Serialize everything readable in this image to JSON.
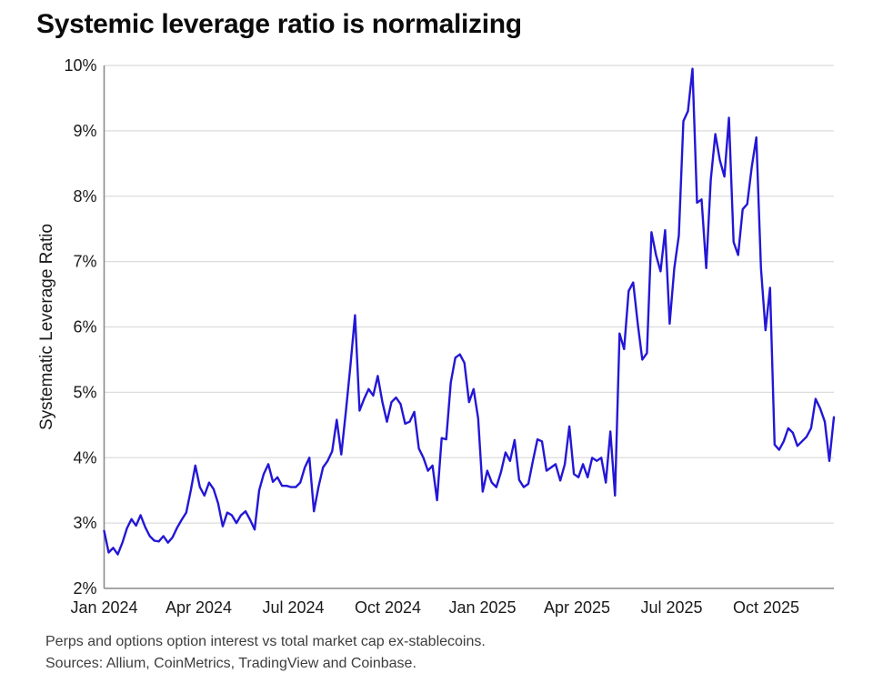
{
  "page": {
    "title": "Systemic leverage ratio is normalizing"
  },
  "footnotes": {
    "method": "Perps and options option interest vs total market cap ex-stablecoins.",
    "sources": "Sources: Allium, CoinMetrics, TradingView and Coinbase."
  },
  "colors": {
    "background": "#ffffff",
    "line": "#2317d6",
    "grid": "#dcdcdc",
    "axis": "#8c8c8c",
    "tick_text": "#1a1a1a",
    "title_text": "#0b0b0b",
    "footnote_text": "#3d3d3d"
  },
  "chart_data": {
    "type": "line",
    "title": "Systemic leverage ratio is normalizing",
    "xlabel": "",
    "ylabel": "Systematic Leverage Ratio",
    "ylim": [
      2,
      10
    ],
    "y_ticks_percent": [
      2,
      3,
      4,
      5,
      6,
      7,
      8,
      9,
      10
    ],
    "y_tick_labels": [
      "2%",
      "3%",
      "4%",
      "5%",
      "6%",
      "7%",
      "8%",
      "9%",
      "10%"
    ],
    "x_tick_labels": [
      "Jan 2024",
      "Apr 2024",
      "Jul 2024",
      "Oct 2024",
      "Jan 2025",
      "Apr 2025",
      "Jul 2025",
      "Oct 2025"
    ],
    "x_tick_months": [
      0,
      3,
      6,
      9,
      12,
      15,
      18,
      21
    ],
    "x_unit": "months since Jan 2024",
    "x_range_months": [
      0,
      23.15
    ],
    "grid": "horizontal gridlines only",
    "legend": "none",
    "series": [
      {
        "name": "Systematic Leverage Ratio (%)",
        "sampling": "uniform in time from x_range_months[0] to x_range_months[1]",
        "values": [
          2.88,
          2.55,
          2.62,
          2.52,
          2.7,
          2.92,
          3.06,
          2.96,
          3.12,
          2.94,
          2.8,
          2.73,
          2.72,
          2.8,
          2.7,
          2.78,
          2.93,
          3.05,
          3.16,
          3.5,
          3.88,
          3.55,
          3.42,
          3.62,
          3.52,
          3.3,
          2.95,
          3.16,
          3.12,
          3.0,
          3.12,
          3.18,
          3.05,
          2.9,
          3.5,
          3.75,
          3.9,
          3.63,
          3.7,
          3.57,
          3.57,
          3.55,
          3.55,
          3.62,
          3.85,
          4.0,
          3.18,
          3.55,
          3.85,
          3.95,
          4.1,
          4.58,
          4.05,
          4.7,
          5.4,
          6.18,
          4.72,
          4.9,
          5.05,
          4.95,
          5.25,
          4.85,
          4.55,
          4.85,
          4.92,
          4.82,
          4.52,
          4.55,
          4.7,
          4.14,
          4.0,
          3.8,
          3.88,
          3.35,
          4.3,
          4.28,
          5.15,
          5.53,
          5.58,
          5.45,
          4.85,
          5.05,
          4.6,
          3.48,
          3.8,
          3.62,
          3.55,
          3.78,
          4.08,
          3.95,
          4.27,
          3.66,
          3.55,
          3.6,
          3.95,
          4.28,
          4.25,
          3.8,
          3.85,
          3.9,
          3.65,
          3.9,
          4.48,
          3.75,
          3.7,
          3.9,
          3.7,
          4.0,
          3.95,
          4.0,
          3.62,
          4.4,
          3.42,
          5.9,
          5.66,
          6.55,
          6.68,
          6.05,
          5.5,
          5.6,
          7.45,
          7.1,
          6.85,
          7.48,
          6.05,
          6.9,
          7.4,
          9.15,
          9.3,
          9.95,
          7.9,
          7.95,
          6.9,
          8.25,
          8.95,
          8.55,
          8.3,
          9.2,
          7.3,
          7.1,
          7.8,
          7.88,
          8.45,
          8.9,
          6.9,
          5.95,
          6.6,
          4.2,
          4.12,
          4.25,
          4.45,
          4.38,
          4.18,
          4.25,
          4.32,
          4.45,
          4.9,
          4.75,
          4.55,
          3.95,
          4.62
        ]
      }
    ]
  }
}
